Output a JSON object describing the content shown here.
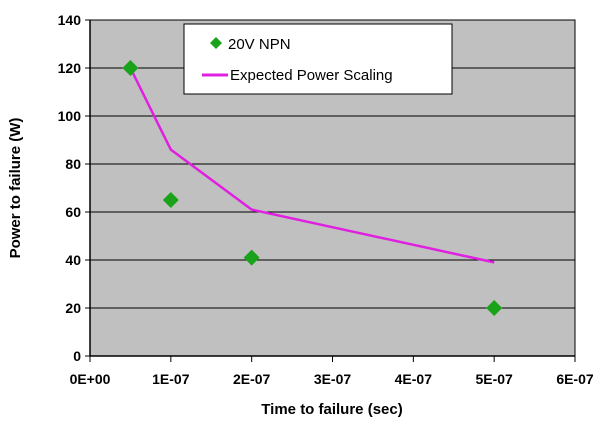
{
  "chart_data": {
    "type": "scatter",
    "title": "",
    "xlabel": "Time to failure (sec)",
    "ylabel": "Power to failure (W)",
    "xlim": [
      0,
      6e-07
    ],
    "ylim": [
      0,
      140
    ],
    "x_ticks": [
      0,
      1e-07,
      2e-07,
      3e-07,
      4e-07,
      5e-07,
      6e-07
    ],
    "x_tick_labels": [
      "0E+00",
      "1E-07",
      "2E-07",
      "3E-07",
      "4E-07",
      "5E-07",
      "6E-07"
    ],
    "y_ticks": [
      0,
      20,
      40,
      60,
      80,
      100,
      120,
      140
    ],
    "y_tick_labels": [
      "0",
      "20",
      "40",
      "60",
      "80",
      "100",
      "120",
      "140"
    ],
    "grid": "horizontal",
    "plot_background": "#c0c0c0",
    "legend_position": "top",
    "series": [
      {
        "name": "20V NPN",
        "kind": "scatter",
        "marker": "diamond",
        "color": "#1aa31a",
        "points": [
          [
            5e-08,
            120
          ],
          [
            1e-07,
            65
          ],
          [
            2e-07,
            41
          ],
          [
            5e-07,
            20
          ]
        ]
      },
      {
        "name": "Expected Power Scaling",
        "kind": "line",
        "color": "#e020e0",
        "points": [
          [
            5e-08,
            120
          ],
          [
            1e-07,
            86
          ],
          [
            2e-07,
            61
          ],
          [
            5e-07,
            39
          ]
        ]
      }
    ]
  }
}
